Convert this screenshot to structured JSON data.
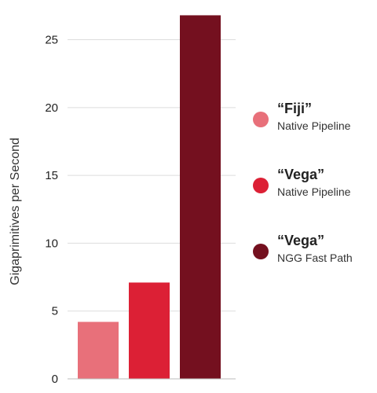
{
  "chart_data": {
    "type": "bar",
    "categories": [
      "“Fiji” Native Pipeline",
      "“Vega” Native Pipeline",
      "“Vega” NGG Fast Path"
    ],
    "values": [
      4.2,
      7.1,
      26.8
    ],
    "ylabel": "Gigaprimitives per Second",
    "ylim": [
      0,
      27
    ],
    "yticks": [
      0,
      5,
      10,
      15,
      20,
      25
    ],
    "grid": true,
    "legend_placement": "right",
    "colors": [
      "#e8707a",
      "#dc2035",
      "#74101f"
    ],
    "legend": [
      {
        "title": "“Fiji”",
        "subtitle": "Native Pipeline",
        "color": "#e8707a"
      },
      {
        "title": "“Vega”",
        "subtitle": "Native Pipeline",
        "color": "#dc2035"
      },
      {
        "title": "“Vega”",
        "subtitle": "NGG Fast Path",
        "color": "#74101f"
      }
    ]
  }
}
